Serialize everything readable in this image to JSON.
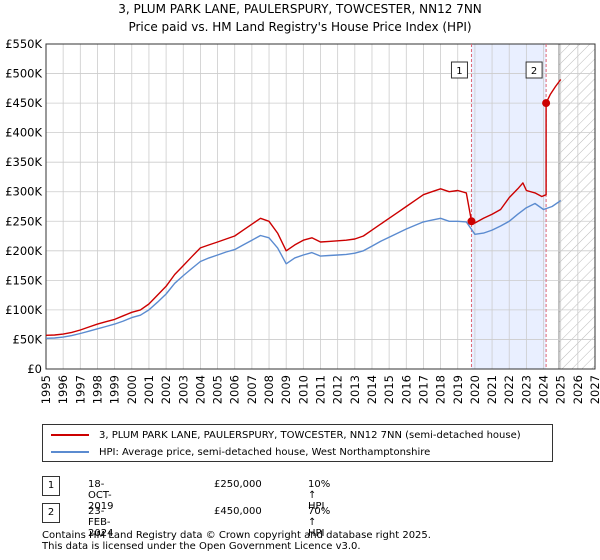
{
  "title_line1": "3, PLUM PARK LANE, PAULERSPURY, TOWCESTER, NN12 7NN",
  "title_line2": "Price paid vs. HM Land Registry's House Price Index (HPI)",
  "colors": {
    "property": "#cc0000",
    "hpi": "#5b8bd0",
    "highlight": "#e9efff",
    "grid": "#cccccc",
    "marker_line": "#dd6677"
  },
  "chart_data": {
    "type": "line",
    "title": "Price paid vs. HM Land Registry's House Price Index (HPI)",
    "xlabel": "",
    "ylabel": "",
    "xlim": [
      1995,
      2027
    ],
    "ylim": [
      0,
      550000
    ],
    "x_ticks": [
      "1995",
      "1996",
      "1997",
      "1998",
      "1999",
      "2000",
      "2001",
      "2002",
      "2003",
      "2004",
      "2005",
      "2006",
      "2007",
      "2008",
      "2009",
      "2010",
      "2011",
      "2012",
      "2013",
      "2014",
      "2015",
      "2016",
      "2017",
      "2018",
      "2019",
      "2020",
      "2021",
      "2022",
      "2023",
      "2024",
      "2025",
      "2026",
      "2027"
    ],
    "y_ticks": [
      {
        "value": 0,
        "label": "£0"
      },
      {
        "value": 50000,
        "label": "£50K"
      },
      {
        "value": 100000,
        "label": "£100K"
      },
      {
        "value": 150000,
        "label": "£150K"
      },
      {
        "value": 200000,
        "label": "£200K"
      },
      {
        "value": 250000,
        "label": "£250K"
      },
      {
        "value": 300000,
        "label": "£300K"
      },
      {
        "value": 350000,
        "label": "£350K"
      },
      {
        "value": 400000,
        "label": "£400K"
      },
      {
        "value": 450000,
        "label": "£450K"
      },
      {
        "value": 500000,
        "label": "£500K"
      },
      {
        "value": 550000,
        "label": "£550K"
      }
    ],
    "highlight_range": [
      2019.8,
      2024.15
    ],
    "forecast_start": 2024.9,
    "series": [
      {
        "name": "3, PLUM PARK LANE, PAULERSPURY, TOWCESTER, NN12 7NN (semi-detached house)",
        "color": "#cc0000",
        "x": [
          1995.0,
          1995.5,
          1996.0,
          1996.5,
          1997.0,
          1997.5,
          1998.0,
          1998.5,
          1999.0,
          1999.5,
          2000.0,
          2000.5,
          2001.0,
          2001.5,
          2002.0,
          2002.5,
          2003.0,
          2003.5,
          2004.0,
          2004.5,
          2005.0,
          2005.5,
          2006.0,
          2006.5,
          2007.0,
          2007.5,
          2008.0,
          2008.5,
          2009.0,
          2009.5,
          2010.0,
          2010.5,
          2011.0,
          2011.5,
          2012.0,
          2012.5,
          2013.0,
          2013.5,
          2014.0,
          2014.5,
          2015.0,
          2015.5,
          2016.0,
          2016.5,
          2017.0,
          2017.5,
          2018.0,
          2018.5,
          2019.0,
          2019.5,
          2019.8,
          2020.0,
          2020.5,
          2021.0,
          2021.5,
          2022.0,
          2022.5,
          2022.8,
          2023.0,
          2023.5,
          2023.9,
          2024.15,
          2024.15,
          2024.4,
          2024.7,
          2025.0
        ],
        "values": [
          57000,
          57500,
          59000,
          62000,
          66000,
          71000,
          76000,
          80000,
          84000,
          90000,
          96000,
          100000,
          110000,
          125000,
          140000,
          160000,
          175000,
          190000,
          205000,
          210000,
          215000,
          220000,
          225000,
          235000,
          245000,
          255000,
          250000,
          230000,
          200000,
          210000,
          218000,
          222000,
          215000,
          216000,
          217000,
          218000,
          220000,
          225000,
          235000,
          245000,
          255000,
          265000,
          275000,
          285000,
          295000,
          300000,
          305000,
          300000,
          302000,
          298000,
          250000,
          247000,
          255000,
          262000,
          270000,
          290000,
          305000,
          315000,
          302000,
          298000,
          292000,
          295000,
          450000,
          465000,
          478000,
          490000
        ]
      },
      {
        "name": "HPI: Average price, semi-detached house, West Northamptonshire",
        "color": "#5b8bd0",
        "x": [
          1995.0,
          1995.5,
          1996.0,
          1996.5,
          1997.0,
          1997.5,
          1998.0,
          1998.5,
          1999.0,
          1999.5,
          2000.0,
          2000.5,
          2001.0,
          2001.5,
          2002.0,
          2002.5,
          2003.0,
          2003.5,
          2004.0,
          2004.5,
          2005.0,
          2005.5,
          2006.0,
          2006.5,
          2007.0,
          2007.5,
          2008.0,
          2008.5,
          2009.0,
          2009.5,
          2010.0,
          2010.5,
          2011.0,
          2011.5,
          2012.0,
          2012.5,
          2013.0,
          2013.5,
          2014.0,
          2014.5,
          2015.0,
          2015.5,
          2016.0,
          2016.5,
          2017.0,
          2017.5,
          2018.0,
          2018.5,
          2019.0,
          2019.5,
          2020.0,
          2020.5,
          2021.0,
          2021.5,
          2022.0,
          2022.5,
          2023.0,
          2023.5,
          2024.0,
          2024.5,
          2025.0
        ],
        "values": [
          52000,
          52500,
          54000,
          56500,
          60000,
          64000,
          68000,
          72000,
          76000,
          81000,
          87000,
          91000,
          100000,
          113000,
          127000,
          145000,
          158000,
          170000,
          182000,
          188000,
          193000,
          198000,
          202000,
          210000,
          218000,
          226000,
          222000,
          205000,
          178000,
          188000,
          193000,
          197000,
          191000,
          192000,
          193000,
          194000,
          196000,
          200000,
          208000,
          216000,
          223000,
          230000,
          237000,
          243000,
          249000,
          252000,
          255000,
          250000,
          250000,
          249000,
          228000,
          230000,
          235000,
          242000,
          250000,
          262000,
          273000,
          280000,
          270000,
          275000,
          285000
        ]
      }
    ],
    "transactions": [
      {
        "id": "1",
        "date": "18-OCT-2019",
        "price": "£250,000",
        "hpi_change": "10% ↑ HPI",
        "x": 2019.8,
        "value": 250000
      },
      {
        "id": "2",
        "date": "23-FEB-2024",
        "price": "£450,000",
        "hpi_change": "70% ↑ HPI",
        "x": 2024.15,
        "value": 450000
      }
    ]
  },
  "footer_line1": "Contains HM Land Registry data © Crown copyright and database right 2025.",
  "footer_line2": "This data is licensed under the Open Government Licence v3.0."
}
